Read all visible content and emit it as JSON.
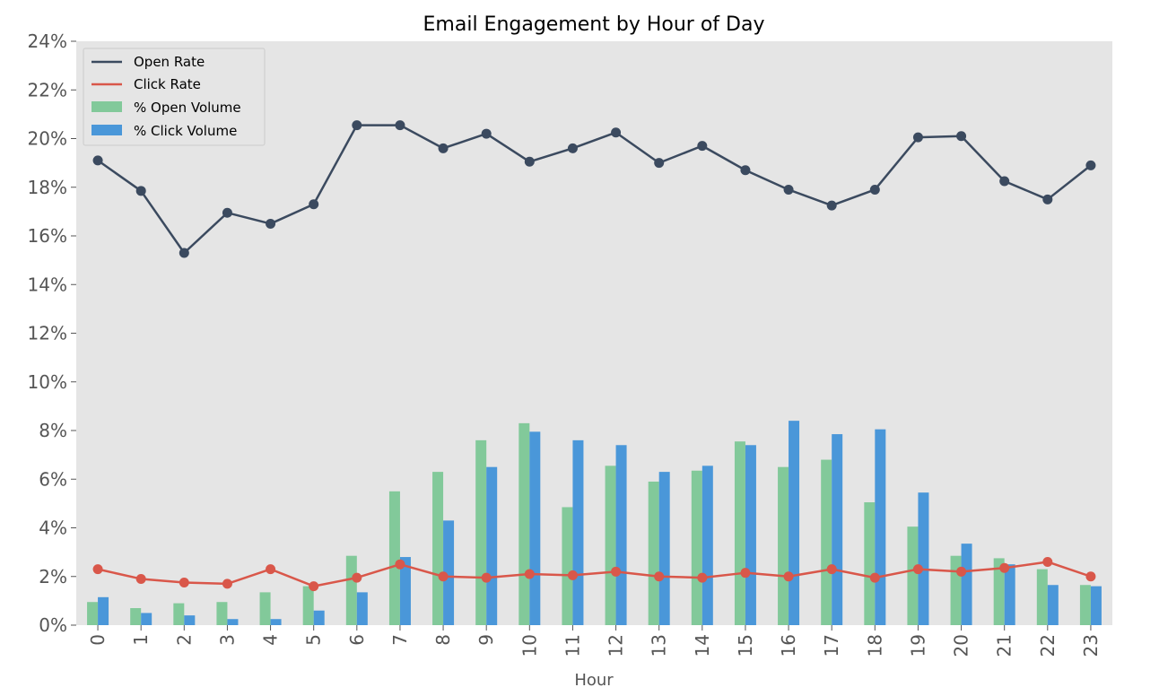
{
  "chart_data": {
    "type": "bar+line",
    "title": "Email Engagement by Hour of Day",
    "xlabel": "Hour",
    "ylabel": "",
    "ylim": [
      0,
      24
    ],
    "ytick_values": [
      0,
      2,
      4,
      6,
      8,
      10,
      12,
      14,
      16,
      18,
      20,
      22,
      24
    ],
    "ytick_labels": [
      "0%",
      "2%",
      "4%",
      "6%",
      "8%",
      "10%",
      "12%",
      "14%",
      "16%",
      "18%",
      "20%",
      "22%",
      "24%"
    ],
    "categories": [
      "0",
      "1",
      "2",
      "3",
      "4",
      "5",
      "6",
      "7",
      "8",
      "9",
      "10",
      "11",
      "12",
      "13",
      "14",
      "15",
      "16",
      "17",
      "18",
      "19",
      "20",
      "21",
      "22",
      "23"
    ],
    "grid": false,
    "legend_position": "top-left",
    "series": [
      {
        "name": "Open Rate",
        "kind": "line",
        "color": "#3b4a5f",
        "values": [
          19.1,
          17.85,
          15.3,
          16.95,
          16.5,
          17.3,
          20.55,
          20.55,
          19.6,
          20.2,
          19.05,
          19.6,
          20.25,
          19.0,
          19.7,
          18.7,
          17.9,
          17.25,
          17.9,
          20.05,
          20.1,
          18.25,
          17.5,
          18.9
        ]
      },
      {
        "name": "Click Rate",
        "kind": "line",
        "color": "#d9574a",
        "values": [
          2.3,
          1.9,
          1.75,
          1.7,
          2.3,
          1.6,
          1.95,
          2.5,
          2.0,
          1.95,
          2.1,
          2.05,
          2.2,
          2.0,
          1.95,
          2.15,
          2.0,
          2.3,
          1.95,
          2.3,
          2.2,
          2.35,
          2.6,
          2.0
        ]
      },
      {
        "name": "% Open Volume",
        "kind": "bar",
        "color": "#82c99a",
        "values": [
          0.95,
          0.7,
          0.9,
          0.95,
          1.35,
          1.6,
          2.85,
          5.5,
          6.3,
          7.6,
          8.3,
          4.85,
          6.55,
          5.9,
          6.35,
          7.55,
          6.5,
          6.8,
          5.05,
          4.05,
          2.85,
          2.75,
          2.3,
          1.65
        ]
      },
      {
        "name": "% Click Volume",
        "kind": "bar",
        "color": "#4a97d9",
        "values": [
          1.15,
          0.5,
          0.4,
          0.25,
          0.25,
          0.6,
          1.35,
          2.8,
          4.3,
          6.5,
          7.95,
          7.6,
          7.4,
          6.3,
          6.55,
          7.4,
          8.4,
          7.85,
          8.05,
          5.45,
          3.35,
          2.5,
          1.65,
          1.6
        ]
      }
    ]
  }
}
